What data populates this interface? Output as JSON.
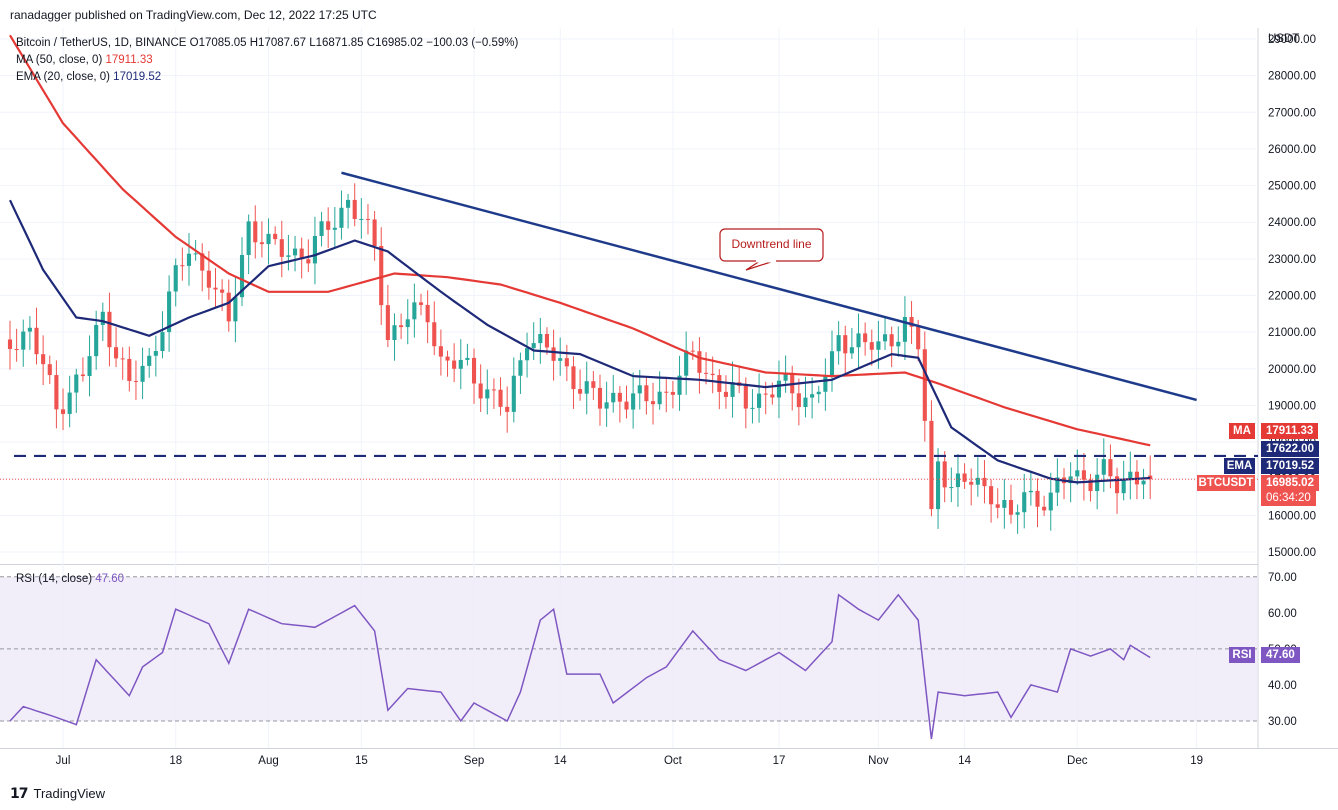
{
  "publisher": "ranadagger published on TradingView.com, Dec 12, 2022 17:25 UTC",
  "legend": {
    "symbol": "Bitcoin / TetherUS, 1D, BINANCE",
    "ohlc": "O17085.05 H17087.67 L16871.85 C16985.02 −100.03 (−0.59%)",
    "ma_label": "MA (50, close, 0)",
    "ma_value": "17911.33",
    "ema_label": "EMA (20, close, 0)",
    "ema_value": "17019.52"
  },
  "rsi_legend": {
    "label": "RSI (14, close)",
    "value": "47.60"
  },
  "currency": "USDT",
  "footer": {
    "brand": "TradingView"
  },
  "colors": {
    "up": "#26a69a",
    "down": "#ef5350",
    "ma": "#e53935",
    "ema": "#1e2a78",
    "trendline": "#1e3a8a",
    "rsi": "#7e57c2",
    "rsi_band": "#ede7f6",
    "grid": "#f0f3fa"
  },
  "tags": {
    "ma": {
      "label": "MA",
      "value": "17911.33"
    },
    "level": {
      "value": "17622.00"
    },
    "ema": {
      "label": "EMA",
      "value": "17019.52"
    },
    "price": {
      "label": "BTCUSDT",
      "value": "16985.02",
      "countdown": "06:34:20"
    },
    "rsi": {
      "label": "RSI",
      "value": "47.60"
    }
  },
  "chart_data": [
    {
      "type": "candlestick",
      "ylim": [
        14700,
        29300
      ],
      "y_ticks": [
        "15000.00",
        "16000.00",
        "17000.00",
        "18000.00",
        "19000.00",
        "20000.00",
        "21000.00",
        "22000.00",
        "23000.00",
        "24000.00",
        "25000.00",
        "26000.00",
        "27000.00",
        "28000.00",
        "29000.00"
      ],
      "x_ticks": [
        "Jul",
        "18",
        "Aug",
        "15",
        "Sep",
        "14",
        "Oct",
        "17",
        "Nov",
        "14",
        "Dec",
        "19"
      ],
      "x_range": [
        "2022-06-23",
        "2022-12-26"
      ],
      "x_tick_dates": [
        "2022-07-01",
        "2022-07-18",
        "2022-08-01",
        "2022-08-15",
        "2022-09-01",
        "2022-09-14",
        "2022-10-01",
        "2022-10-17",
        "2022-11-01",
        "2022-11-14",
        "2022-12-01",
        "2022-12-19"
      ],
      "horizontal_level": 17622,
      "trendline": {
        "from": [
          "2022-08-12",
          25350
        ],
        "to": [
          "2022-12-19",
          19150
        ]
      },
      "annotation": {
        "text": "Downtrend line"
      },
      "close_keypoints": [
        [
          "2022-06-23",
          20800
        ],
        [
          "2022-06-26",
          21000
        ],
        [
          "2022-06-30",
          19000
        ],
        [
          "2022-07-04",
          19800
        ],
        [
          "2022-07-07",
          21500
        ],
        [
          "2022-07-11",
          19500
        ],
        [
          "2022-07-14",
          20200
        ],
        [
          "2022-07-18",
          22500
        ],
        [
          "2022-07-20",
          23200
        ],
        [
          "2022-07-23",
          22600
        ],
        [
          "2022-07-26",
          21200
        ],
        [
          "2022-07-29",
          24000
        ],
        [
          "2022-08-01",
          23300
        ],
        [
          "2022-08-05",
          23200
        ],
        [
          "2022-08-07",
          23100
        ],
        [
          "2022-08-10",
          23900
        ],
        [
          "2022-08-13",
          24600
        ],
        [
          "2022-08-15",
          24000
        ],
        [
          "2022-08-17",
          23300
        ],
        [
          "2022-08-19",
          20900
        ],
        [
          "2022-08-22",
          21400
        ],
        [
          "2022-08-25",
          21600
        ],
        [
          "2022-08-27",
          20200
        ],
        [
          "2022-08-31",
          20000
        ],
        [
          "2022-09-06",
          18800
        ],
        [
          "2022-09-09",
          21000
        ],
        [
          "2022-09-13",
          20300
        ],
        [
          "2022-09-16",
          19800
        ],
        [
          "2022-09-20",
          19000
        ],
        [
          "2022-09-23",
          19300
        ],
        [
          "2022-09-27",
          19100
        ],
        [
          "2022-09-30",
          19400
        ],
        [
          "2022-10-04",
          20300
        ],
        [
          "2022-10-09",
          19400
        ],
        [
          "2022-10-12",
          19100
        ],
        [
          "2022-10-17",
          19500
        ],
        [
          "2022-10-22",
          19200
        ],
        [
          "2022-10-25",
          20100
        ],
        [
          "2022-10-26",
          20800
        ],
        [
          "2022-10-29",
          20800
        ],
        [
          "2022-11-01",
          20500
        ],
        [
          "2022-11-05",
          21300
        ],
        [
          "2022-11-07",
          20600
        ],
        [
          "2022-11-08",
          18500
        ],
        [
          "2022-11-09",
          15900
        ],
        [
          "2022-11-10",
          17600
        ],
        [
          "2022-11-12",
          16800
        ],
        [
          "2022-11-15",
          16900
        ],
        [
          "2022-11-18",
          16700
        ],
        [
          "2022-11-21",
          15800
        ],
        [
          "2022-11-23",
          16600
        ],
        [
          "2022-11-27",
          16400
        ],
        [
          "2022-11-30",
          17200
        ],
        [
          "2022-12-03",
          17000
        ],
        [
          "2022-12-05",
          17100
        ],
        [
          "2022-12-07",
          16850
        ],
        [
          "2022-12-09",
          17150
        ],
        [
          "2022-12-12",
          16985
        ]
      ],
      "ma50_keypoints": [
        [
          "2022-06-23",
          29100
        ],
        [
          "2022-07-01",
          26700
        ],
        [
          "2022-07-10",
          24900
        ],
        [
          "2022-07-18",
          23600
        ],
        [
          "2022-07-26",
          22600
        ],
        [
          "2022-08-01",
          22100
        ],
        [
          "2022-08-10",
          22100
        ],
        [
          "2022-08-20",
          22600
        ],
        [
          "2022-08-28",
          22500
        ],
        [
          "2022-09-05",
          22300
        ],
        [
          "2022-09-14",
          21800
        ],
        [
          "2022-09-25",
          21100
        ],
        [
          "2022-10-05",
          20300
        ],
        [
          "2022-10-15",
          19900
        ],
        [
          "2022-10-25",
          19800
        ],
        [
          "2022-11-05",
          19900
        ],
        [
          "2022-11-10",
          19600
        ],
        [
          "2022-11-20",
          18950
        ],
        [
          "2022-12-01",
          18350
        ],
        [
          "2022-12-12",
          17911
        ]
      ],
      "ema20_keypoints": [
        [
          "2022-06-23",
          24600
        ],
        [
          "2022-06-28",
          22700
        ],
        [
          "2022-07-03",
          21400
        ],
        [
          "2022-07-07",
          21300
        ],
        [
          "2022-07-14",
          20900
        ],
        [
          "2022-07-20",
          21400
        ],
        [
          "2022-07-26",
          21800
        ],
        [
          "2022-08-01",
          22800
        ],
        [
          "2022-08-08",
          23100
        ],
        [
          "2022-08-14",
          23500
        ],
        [
          "2022-08-19",
          23200
        ],
        [
          "2022-08-27",
          22100
        ],
        [
          "2022-09-03",
          21200
        ],
        [
          "2022-09-10",
          20500
        ],
        [
          "2022-09-17",
          20400
        ],
        [
          "2022-09-25",
          19800
        ],
        [
          "2022-10-05",
          19700
        ],
        [
          "2022-10-15",
          19500
        ],
        [
          "2022-10-25",
          19700
        ],
        [
          "2022-11-03",
          20400
        ],
        [
          "2022-11-07",
          20300
        ],
        [
          "2022-11-12",
          18400
        ],
        [
          "2022-11-19",
          17500
        ],
        [
          "2022-11-27",
          17000
        ],
        [
          "2022-12-01",
          16900
        ],
        [
          "2022-12-12",
          17020
        ]
      ]
    },
    {
      "type": "line",
      "name": "RSI (14, close)",
      "ylim": [
        22.5,
        73
      ],
      "y_ticks": [
        "30.00",
        "40.00",
        "50.00",
        "60.00",
        "70.00"
      ],
      "band": [
        30,
        70
      ],
      "mid": 50,
      "keypoints": [
        [
          "2022-06-23",
          30
        ],
        [
          "2022-06-25",
          34
        ],
        [
          "2022-06-30",
          31
        ],
        [
          "2022-07-03",
          29
        ],
        [
          "2022-07-06",
          47
        ],
        [
          "2022-07-11",
          37
        ],
        [
          "2022-07-13",
          45
        ],
        [
          "2022-07-16",
          49
        ],
        [
          "2022-07-18",
          61
        ],
        [
          "2022-07-23",
          57
        ],
        [
          "2022-07-26",
          46
        ],
        [
          "2022-07-29",
          61
        ],
        [
          "2022-08-03",
          57
        ],
        [
          "2022-08-08",
          56
        ],
        [
          "2022-08-12",
          60
        ],
        [
          "2022-08-14",
          62
        ],
        [
          "2022-08-17",
          55
        ],
        [
          "2022-08-19",
          33
        ],
        [
          "2022-08-22",
          39
        ],
        [
          "2022-08-27",
          38
        ],
        [
          "2022-08-30",
          30
        ],
        [
          "2022-09-01",
          35
        ],
        [
          "2022-09-06",
          30
        ],
        [
          "2022-09-08",
          38
        ],
        [
          "2022-09-11",
          58
        ],
        [
          "2022-09-13",
          61
        ],
        [
          "2022-09-15",
          43
        ],
        [
          "2022-09-20",
          43
        ],
        [
          "2022-09-22",
          35
        ],
        [
          "2022-09-27",
          42
        ],
        [
          "2022-09-30",
          45
        ],
        [
          "2022-10-04",
          55
        ],
        [
          "2022-10-08",
          47
        ],
        [
          "2022-10-12",
          44
        ],
        [
          "2022-10-17",
          49
        ],
        [
          "2022-10-21",
          44
        ],
        [
          "2022-10-25",
          52
        ],
        [
          "2022-10-26",
          65
        ],
        [
          "2022-10-29",
          61
        ],
        [
          "2022-11-01",
          58
        ],
        [
          "2022-11-04",
          65
        ],
        [
          "2022-11-07",
          58
        ],
        [
          "2022-11-09",
          25
        ],
        [
          "2022-11-10",
          38
        ],
        [
          "2022-11-14",
          37
        ],
        [
          "2022-11-19",
          38
        ],
        [
          "2022-11-21",
          31
        ],
        [
          "2022-11-24",
          40
        ],
        [
          "2022-11-28",
          38
        ],
        [
          "2022-11-30",
          50
        ],
        [
          "2022-12-03",
          48
        ],
        [
          "2022-12-06",
          50
        ],
        [
          "2022-12-08",
          47
        ],
        [
          "2022-12-09",
          51
        ],
        [
          "2022-12-12",
          47.6
        ]
      ]
    }
  ]
}
